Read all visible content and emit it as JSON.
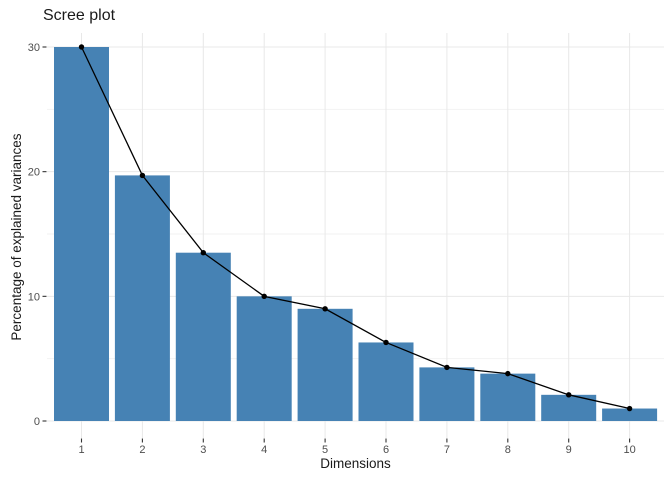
{
  "page": {
    "background": "#FFFFFF"
  },
  "chart_data": {
    "type": "bar",
    "overlay": "line",
    "title": "Scree plot",
    "xlabel": "Dimensions",
    "ylabel": "Percentage of explained variances",
    "categories": [
      "1",
      "2",
      "3",
      "4",
      "5",
      "6",
      "7",
      "8",
      "9",
      "10"
    ],
    "series": [
      {
        "name": "explained-variance-bars",
        "type": "bar",
        "values": [
          30,
          19.7,
          13.5,
          10,
          9,
          6.3,
          4.3,
          3.8,
          2.1,
          1
        ]
      },
      {
        "name": "explained-variance-line",
        "type": "line-with-points",
        "values": [
          30,
          19.7,
          13.5,
          10,
          9,
          6.3,
          4.3,
          3.8,
          2.1,
          1
        ]
      }
    ],
    "ylim": [
      0,
      30
    ],
    "yticks_major": [
      0,
      10,
      20,
      30
    ],
    "yticks_minor": [
      5,
      15,
      25
    ],
    "grid": true,
    "legend": "none"
  },
  "colors": {
    "bar_fill": "#4682B4",
    "line": "#000000",
    "point": "#000000",
    "grid_major": "#E8E8E8",
    "grid_minor": "#F2F2F2",
    "axis_tick": "#333333",
    "tick_label": "#4D4D4D",
    "title_text": "#1A1A1A",
    "background": "#FFFFFF"
  }
}
